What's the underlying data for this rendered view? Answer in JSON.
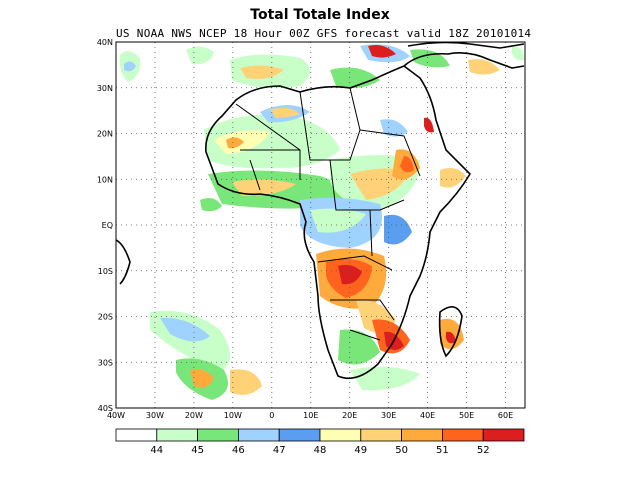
{
  "title": "Total Totale Index",
  "subtitle": "US NOAA NWS NCEP 18 Hour 00Z GFS forecast valid 18Z 20101014",
  "lat_labels": [
    "40N",
    "30N",
    "20N",
    "10N",
    "EQ",
    "10S",
    "20S",
    "30S",
    "40S"
  ],
  "lon_labels": [
    "40W",
    "30W",
    "20W",
    "10W",
    "0",
    "10E",
    "20E",
    "30E",
    "40E",
    "50E",
    "60E"
  ],
  "colorbar": {
    "colors": [
      "#ffffff",
      "#c8ffc8",
      "#78e678",
      "#a0d2ff",
      "#5a9ef0",
      "#ffffb4",
      "#ffd278",
      "#ffaa3c",
      "#ff641e",
      "#dc1e1e"
    ],
    "labels": [
      "44",
      "45",
      "46",
      "47",
      "48",
      "49",
      "50",
      "51",
      "52"
    ]
  },
  "chart_data": {
    "type": "heatmap",
    "title": "Total Totale Index",
    "lon_range": [
      -40,
      65
    ],
    "lat_range": [
      -40,
      40
    ],
    "levels": [
      44,
      45,
      46,
      47,
      48,
      49,
      50,
      51,
      52
    ]
  }
}
